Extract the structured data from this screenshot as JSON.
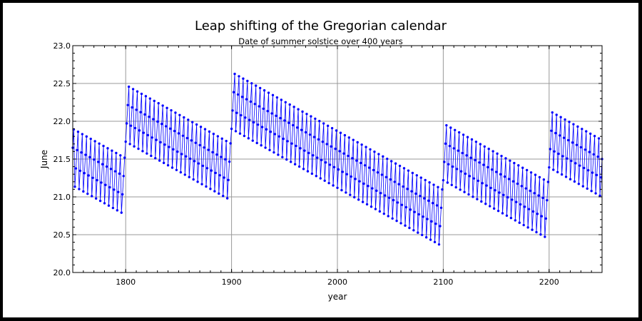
{
  "chart_data": {
    "type": "line",
    "title": "Leap shifting of the Gregorian calendar",
    "subtitle": "Date of summer solstice over 400 years",
    "xlabel": "year",
    "ylabel": "June",
    "xlim": [
      1750,
      2250
    ],
    "ylim": [
      20.0,
      23.0
    ],
    "x_ticks": [
      1800,
      1900,
      2000,
      2100,
      2200
    ],
    "y_ticks": [
      "20.0",
      "20.5",
      "21.0",
      "21.5",
      "22.0",
      "22.5",
      "23.0"
    ],
    "grid": true,
    "series": [
      {
        "color": "#0000ff",
        "segments": [
          {
            "start_year": 1750,
            "end_year": 1799,
            "first_value": 21.65,
            "first_cycle_low": 21.13
          },
          {
            "start_year": 1800,
            "end_year": 1899,
            "first_value": 21.73,
            "first_cycle_low": 21.7
          },
          {
            "start_year": 1900,
            "end_year": 2099,
            "first_value": 21.9,
            "first_cycle_low": 21.88
          },
          {
            "start_year": 2100,
            "end_year": 2199,
            "first_value": 21.22,
            "first_cycle_low": 21.18
          },
          {
            "start_year": 2200,
            "end_year": 2250,
            "first_value": 21.39,
            "first_cycle_low": 21.36
          }
        ],
        "drift_per_year": -0.0078,
        "leap_jump": 1.0
      }
    ]
  }
}
